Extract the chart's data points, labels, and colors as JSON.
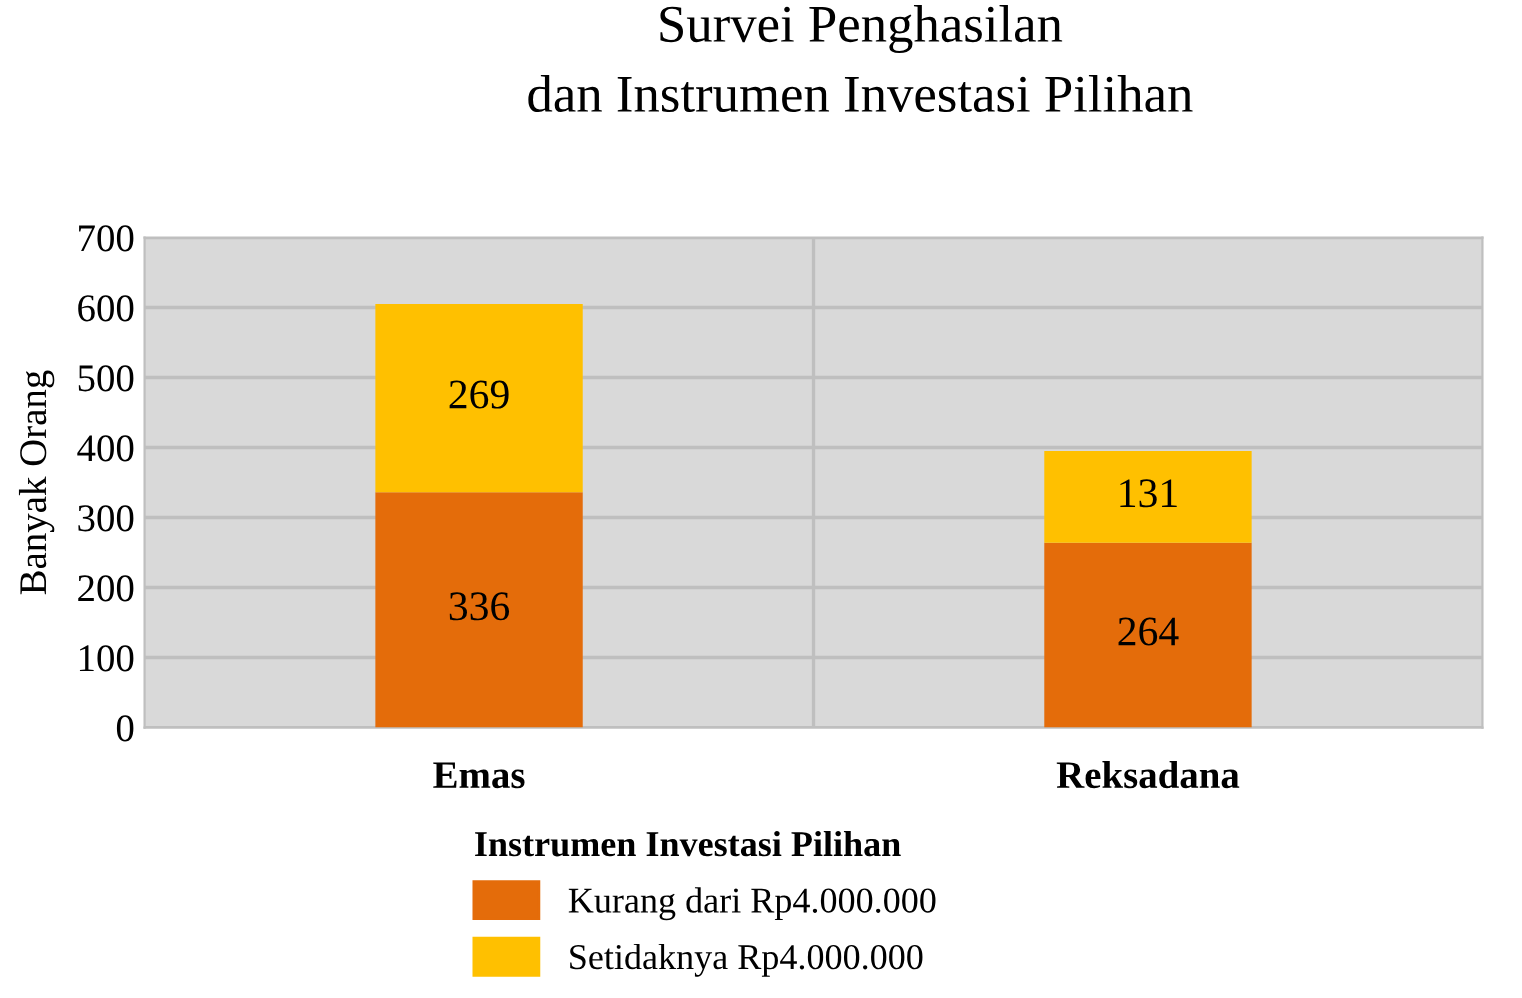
{
  "chart_data": {
    "type": "bar",
    "title": "Survei Penghasilan\ndan Instrumen Investasi Pilihan",
    "ylabel": "Banyak Orang",
    "legend_title": "Instrumen Investasi Pilihan",
    "categories": [
      "Emas",
      "Reksadana"
    ],
    "stacked": true,
    "series": [
      {
        "name": "Kurang dari Rp4.000.000",
        "color": "#e46c0a",
        "values": [
          336,
          264
        ]
      },
      {
        "name": "Setidaknya Rp4.000.000",
        "color": "#ffc000",
        "values": [
          269,
          131
        ]
      }
    ],
    "ylim": [
      0,
      700
    ],
    "yticks": [
      0,
      100,
      200,
      300,
      400,
      500,
      600,
      700
    ],
    "grid": true,
    "legend": "bottom",
    "data_labels": true
  }
}
